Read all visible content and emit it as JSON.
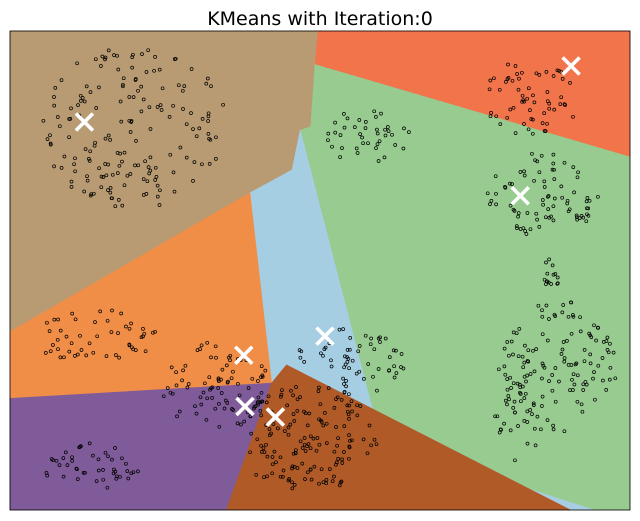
{
  "chart_data": {
    "type": "scatter",
    "title": "KMeans with Iteration:0",
    "xlabel": "",
    "ylabel": "",
    "xlim": [
      0,
      100
    ],
    "ylim": [
      0,
      100
    ],
    "grid": false,
    "legend": "none",
    "marker_color": "#000000",
    "centroid_color": "#ffffff",
    "regions": [
      {
        "name": "tan",
        "color": "#b89b72",
        "polygon": [
          [
            0,
            100
          ],
          [
            49.7,
            100
          ],
          [
            48.5,
            80
          ],
          [
            45.5,
            71
          ],
          [
            38.7,
            66.2
          ],
          [
            0,
            37.2
          ]
        ]
      },
      {
        "name": "red-orange",
        "color": "#f2744b",
        "polygon": [
          [
            49.7,
            100
          ],
          [
            100,
            100
          ],
          [
            100,
            73.7
          ],
          [
            49.2,
            93
          ]
        ]
      },
      {
        "name": "light-green",
        "color": "#97cb90",
        "polygon": [
          [
            49.2,
            93
          ],
          [
            100,
            73.7
          ],
          [
            100,
            0
          ],
          [
            94.2,
            0
          ],
          [
            59.8,
            14.3
          ],
          [
            46.8,
            79.3
          ],
          [
            48.5,
            80
          ]
        ]
      },
      {
        "name": "light-blue",
        "color": "#a6cee3",
        "polygon": [
          [
            46.8,
            79.3
          ],
          [
            59.8,
            14.3
          ],
          [
            94.2,
            0
          ],
          [
            90.4,
            0
          ],
          [
            44.6,
            30.3
          ],
          [
            42.2,
            26.5
          ],
          [
            38.7,
            66.2
          ],
          [
            45.5,
            71
          ]
        ]
      },
      {
        "name": "orange",
        "color": "#f08e48",
        "polygon": [
          [
            0,
            37.2
          ],
          [
            38.7,
            66.2
          ],
          [
            42.2,
            26.5
          ],
          [
            0,
            23.3
          ]
        ]
      },
      {
        "name": "purple",
        "color": "#7f5b99",
        "polygon": [
          [
            0,
            23.3
          ],
          [
            42.2,
            26.5
          ],
          [
            34.9,
            0
          ],
          [
            0,
            0
          ]
        ]
      },
      {
        "name": "brown",
        "color": "#b05a28",
        "polygon": [
          [
            42.2,
            26.5
          ],
          [
            44.6,
            30.3
          ],
          [
            90.4,
            0
          ],
          [
            34.9,
            0
          ]
        ]
      }
    ],
    "centroids": [
      {
        "x": 12,
        "y": 81
      },
      {
        "x": 90.5,
        "y": 92.7
      },
      {
        "x": 82.3,
        "y": 65.6
      },
      {
        "x": 50.8,
        "y": 36.3
      },
      {
        "x": 37.7,
        "y": 32.3
      },
      {
        "x": 37.9,
        "y": 21.6
      },
      {
        "x": 42.8,
        "y": 19.4
      }
    ],
    "clusters": [
      {
        "cx": 20,
        "cy": 80,
        "rx": 15,
        "ry": 17,
        "n": 170
      },
      {
        "cx": 58,
        "cy": 78,
        "rx": 7,
        "ry": 6,
        "n": 40
      },
      {
        "cx": 84,
        "cy": 86,
        "rx": 8,
        "ry": 8,
        "n": 60
      },
      {
        "cx": 86,
        "cy": 66,
        "rx": 9,
        "ry": 9,
        "n": 80
      },
      {
        "cx": 88,
        "cy": 30,
        "rx": 10,
        "ry": 14,
        "n": 130
      },
      {
        "cx": 14,
        "cy": 36,
        "rx": 10,
        "ry": 6,
        "n": 50
      },
      {
        "cx": 13,
        "cy": 9,
        "rx": 8,
        "ry": 5,
        "n": 45
      },
      {
        "cx": 33,
        "cy": 26,
        "rx": 9,
        "ry": 9,
        "n": 80
      },
      {
        "cx": 48,
        "cy": 15,
        "rx": 12,
        "ry": 11,
        "n": 150
      },
      {
        "cx": 55,
        "cy": 31,
        "rx": 9,
        "ry": 7,
        "n": 60
      },
      {
        "cx": 82,
        "cy": 19,
        "rx": 4,
        "ry": 9,
        "n": 25
      },
      {
        "cx": 87.3,
        "cy": 49,
        "rx": 1.2,
        "ry": 4,
        "n": 15
      }
    ]
  }
}
